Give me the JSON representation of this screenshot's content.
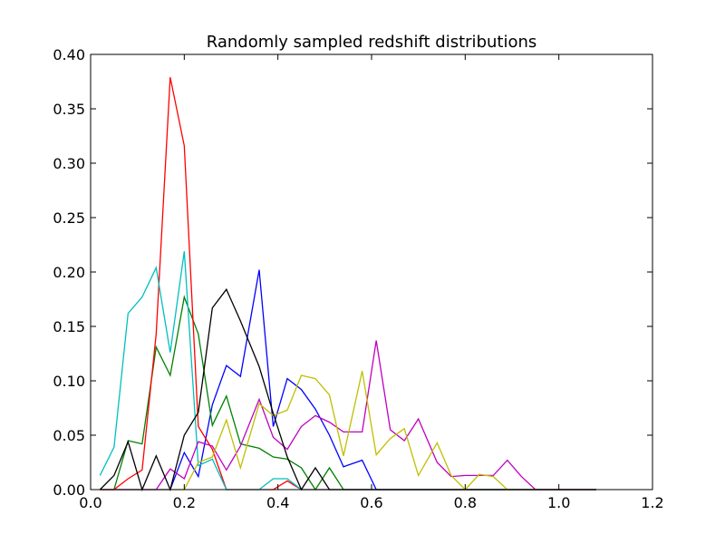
{
  "chart_data": {
    "type": "line",
    "title": "Randomly sampled redshift distributions",
    "xlabel": "",
    "ylabel": "",
    "xlim": [
      0.0,
      1.2
    ],
    "ylim": [
      0.0,
      0.4
    ],
    "x_ticks": [
      "0.0",
      "0.2",
      "0.4",
      "0.6",
      "0.8",
      "1.0",
      "1.2"
    ],
    "y_ticks": [
      "0.00",
      "0.05",
      "0.10",
      "0.15",
      "0.20",
      "0.25",
      "0.30",
      "0.35",
      "0.40"
    ],
    "grid": false,
    "legend": "none",
    "series": [
      {
        "color": "#0000ff",
        "x": [
          0.02,
          0.05,
          0.08,
          0.11,
          0.14,
          0.17,
          0.2,
          0.23,
          0.26,
          0.29,
          0.32,
          0.36,
          0.39,
          0.42,
          0.45,
          0.48,
          0.51,
          0.54,
          0.58,
          0.61,
          0.64,
          0.67,
          0.7,
          0.74,
          0.77,
          0.8,
          0.83,
          0.86,
          0.89,
          0.92,
          0.95,
          0.98,
          1.01,
          1.05,
          1.08
        ],
        "values": [
          0.0,
          0.0,
          0.0,
          0.0,
          0.0,
          0.0,
          0.034,
          0.012,
          0.078,
          0.114,
          0.104,
          0.202,
          0.058,
          0.102,
          0.092,
          0.074,
          0.05,
          0.021,
          0.027,
          0.0,
          0.0,
          0.0,
          0.0,
          0.0,
          0.0,
          0.0,
          0.0,
          0.0,
          0.0,
          0.0,
          0.0,
          0.0,
          0.0,
          0.0,
          0.0
        ]
      },
      {
        "color": "#008000",
        "x": [
          0.02,
          0.05,
          0.08,
          0.11,
          0.14,
          0.17,
          0.2,
          0.23,
          0.26,
          0.29,
          0.32,
          0.36,
          0.39,
          0.42,
          0.45,
          0.48,
          0.51,
          0.54,
          0.58,
          0.61,
          0.64,
          0.67,
          0.7,
          0.74,
          0.77,
          0.8,
          0.83,
          0.86,
          0.89,
          0.92,
          0.95,
          0.98,
          1.01,
          1.05,
          1.08
        ],
        "values": [
          0.0,
          0.0,
          0.045,
          0.042,
          0.131,
          0.105,
          0.177,
          0.143,
          0.059,
          0.086,
          0.042,
          0.038,
          0.03,
          0.028,
          0.02,
          0.0,
          0.02,
          0.0,
          0.0,
          0.0,
          0.0,
          0.0,
          0.0,
          0.0,
          0.0,
          0.0,
          0.0,
          0.0,
          0.0,
          0.0,
          0.0,
          0.0,
          0.0,
          0.0,
          0.0
        ]
      },
      {
        "color": "#ff0000",
        "x": [
          0.02,
          0.05,
          0.08,
          0.11,
          0.14,
          0.17,
          0.2,
          0.23,
          0.26,
          0.29,
          0.32,
          0.36,
          0.39,
          0.42,
          0.45,
          0.48,
          0.51,
          0.54,
          0.58,
          0.61,
          0.64,
          0.67,
          0.7,
          0.74,
          0.77,
          0.8,
          0.83,
          0.86,
          0.89,
          0.92,
          0.95,
          0.98,
          1.01,
          1.05,
          1.08
        ],
        "values": [
          0.0,
          0.0,
          0.01,
          0.018,
          0.143,
          0.379,
          0.316,
          0.058,
          0.037,
          0.0,
          0.0,
          0.0,
          0.0,
          0.008,
          0.0,
          0.0,
          0.0,
          0.0,
          0.0,
          0.0,
          0.0,
          0.0,
          0.0,
          0.0,
          0.0,
          0.0,
          0.0,
          0.0,
          0.0,
          0.0,
          0.0,
          0.0,
          0.0,
          0.0,
          0.0
        ]
      },
      {
        "color": "#00bfbf",
        "x": [
          0.02,
          0.05,
          0.08,
          0.11,
          0.14,
          0.17,
          0.2,
          0.23,
          0.26,
          0.29,
          0.32,
          0.36,
          0.39,
          0.42,
          0.45,
          0.48,
          0.51,
          0.54,
          0.58,
          0.61,
          0.64,
          0.67,
          0.7,
          0.74,
          0.77,
          0.8,
          0.83,
          0.86,
          0.89,
          0.92,
          0.95,
          0.98,
          1.01,
          1.05,
          1.08
        ],
        "values": [
          0.013,
          0.039,
          0.162,
          0.177,
          0.204,
          0.126,
          0.219,
          0.022,
          0.028,
          0.0,
          0.0,
          0.0,
          0.01,
          0.01,
          0.0,
          0.0,
          0.0,
          0.0,
          0.0,
          0.0,
          0.0,
          0.0,
          0.0,
          0.0,
          0.0,
          0.0,
          0.0,
          0.0,
          0.0,
          0.0,
          0.0,
          0.0,
          0.0,
          0.0,
          0.0
        ]
      },
      {
        "color": "#bf00bf",
        "x": [
          0.02,
          0.05,
          0.08,
          0.11,
          0.14,
          0.17,
          0.2,
          0.23,
          0.26,
          0.29,
          0.32,
          0.36,
          0.39,
          0.42,
          0.45,
          0.48,
          0.51,
          0.54,
          0.58,
          0.61,
          0.64,
          0.67,
          0.7,
          0.74,
          0.77,
          0.8,
          0.83,
          0.86,
          0.89,
          0.92,
          0.95,
          0.98,
          1.01,
          1.05,
          1.08
        ],
        "values": [
          0.0,
          0.0,
          0.0,
          0.0,
          0.0,
          0.019,
          0.01,
          0.044,
          0.04,
          0.018,
          0.04,
          0.083,
          0.048,
          0.037,
          0.058,
          0.068,
          0.062,
          0.053,
          0.053,
          0.137,
          0.055,
          0.045,
          0.065,
          0.025,
          0.012,
          0.013,
          0.013,
          0.013,
          0.027,
          0.012,
          0.0,
          0.0,
          0.0,
          0.0,
          0.0
        ]
      },
      {
        "color": "#bfbf00",
        "x": [
          0.02,
          0.05,
          0.08,
          0.11,
          0.14,
          0.17,
          0.2,
          0.23,
          0.26,
          0.29,
          0.32,
          0.36,
          0.39,
          0.42,
          0.45,
          0.48,
          0.51,
          0.54,
          0.58,
          0.61,
          0.64,
          0.67,
          0.7,
          0.74,
          0.77,
          0.8,
          0.83,
          0.86,
          0.89,
          0.92,
          0.95,
          0.98,
          1.01,
          1.05,
          1.08
        ],
        "values": [
          0.0,
          0.0,
          0.0,
          0.0,
          0.0,
          0.0,
          0.0,
          0.025,
          0.03,
          0.064,
          0.02,
          0.079,
          0.068,
          0.073,
          0.105,
          0.102,
          0.087,
          0.031,
          0.109,
          0.032,
          0.047,
          0.056,
          0.013,
          0.043,
          0.013,
          0.0,
          0.014,
          0.012,
          0.0,
          0.0,
          0.0,
          0.0,
          0.0,
          0.0,
          0.0
        ]
      },
      {
        "color": "#000000",
        "x": [
          0.02,
          0.05,
          0.08,
          0.11,
          0.14,
          0.17,
          0.2,
          0.23,
          0.26,
          0.29,
          0.32,
          0.36,
          0.39,
          0.42,
          0.45,
          0.48,
          0.51,
          0.54,
          0.58,
          0.61,
          0.64,
          0.67,
          0.7,
          0.74,
          0.77,
          0.8,
          0.83,
          0.86,
          0.89,
          0.92,
          0.95,
          0.98,
          1.01,
          1.05,
          1.08
        ],
        "values": [
          0.0,
          0.013,
          0.044,
          0.0,
          0.031,
          0.0,
          0.05,
          0.071,
          0.167,
          0.184,
          0.155,
          0.113,
          0.07,
          0.03,
          0.0,
          0.02,
          0.0,
          0.0,
          0.0,
          0.0,
          0.0,
          0.0,
          0.0,
          0.0,
          0.0,
          0.0,
          0.0,
          0.0,
          0.0,
          0.0,
          0.0,
          0.0,
          0.0,
          0.0,
          0.0
        ]
      }
    ]
  }
}
